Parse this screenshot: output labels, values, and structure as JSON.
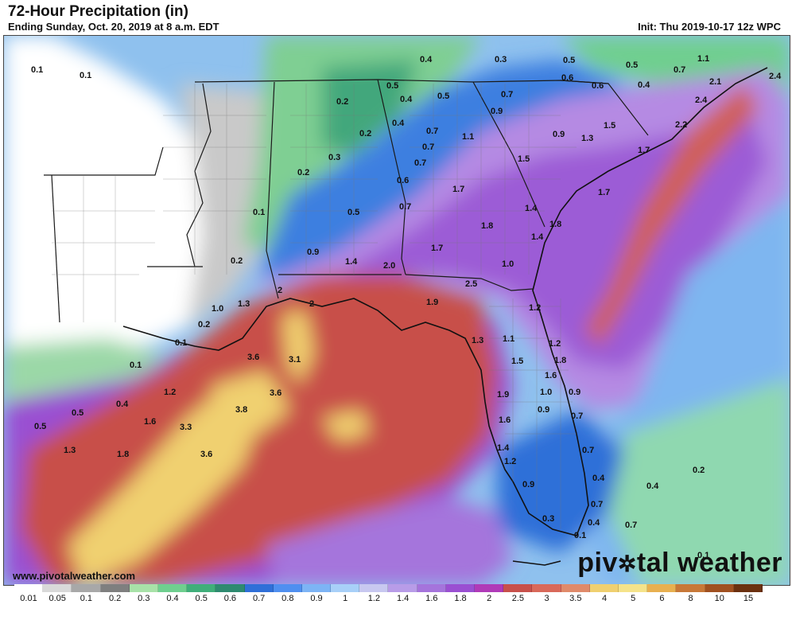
{
  "header": {
    "title": "72-Hour Precipitation (in)",
    "subtitle": "Ending Sunday, Oct. 20, 2019 at 8 a.m. EDT",
    "init": "Init: Thu 2019-10-17 12z WPC"
  },
  "footer": {
    "website": "www.pivotalweather.com",
    "brand_left": "piv",
    "brand_right": "tal weather"
  },
  "legend": {
    "labels": [
      "0.01",
      "0.05",
      "0.1",
      "0.2",
      "0.3",
      "0.4",
      "0.5",
      "0.6",
      "0.7",
      "0.8",
      "0.9",
      "1",
      "1.2",
      "1.4",
      "1.6",
      "1.8",
      "2",
      "2.5",
      "3",
      "3.5",
      "4",
      "5",
      "6",
      "8",
      "10",
      "15"
    ],
    "colors": [
      "#ffffff",
      "#d9d9d9",
      "#a8a8a8",
      "#7f7f7f",
      "#a8e2a8",
      "#6fcf8f",
      "#3fae7a",
      "#2e8a70",
      "#2f6fd8",
      "#4f8ff0",
      "#7db4f5",
      "#a8d0f8",
      "#c8c8f0",
      "#b89ce8",
      "#a574dc",
      "#9a4fd2",
      "#b03ab8",
      "#c8504a",
      "#d9695a",
      "#e08a6a",
      "#f0d070",
      "#f5e38a",
      "#e8b050",
      "#c87838",
      "#a05020",
      "#6b3010"
    ]
  },
  "map": {
    "labels": [
      [
        "0.1",
        34,
        36
      ],
      [
        "0.1",
        95,
        43
      ],
      [
        "0.4",
        523,
        23
      ],
      [
        "0.3",
        617,
        23
      ],
      [
        "0.5",
        703,
        24
      ],
      [
        "0.5",
        782,
        30
      ],
      [
        "0.7",
        842,
        36
      ],
      [
        "1.1",
        872,
        22
      ],
      [
        "0.6",
        701,
        46
      ],
      [
        "0.6",
        739,
        56
      ],
      [
        "0.4",
        797,
        55
      ],
      [
        "0.5",
        481,
        56
      ],
      [
        "0.5",
        545,
        69
      ],
      [
        "0.7",
        625,
        67
      ],
      [
        "0.4",
        498,
        73
      ],
      [
        "0.2",
        418,
        76
      ],
      [
        "0.9",
        612,
        88
      ],
      [
        "2.1",
        887,
        51
      ],
      [
        "2.4",
        962,
        44
      ],
      [
        "2.4",
        869,
        74
      ],
      [
        "2.2",
        844,
        105
      ],
      [
        "1.5",
        754,
        106
      ],
      [
        "0.4",
        488,
        103
      ],
      [
        "0.7",
        531,
        113
      ],
      [
        "1.1",
        576,
        120
      ],
      [
        "0.9",
        690,
        117
      ],
      [
        "1.3",
        726,
        122
      ],
      [
        "0.2",
        447,
        116
      ],
      [
        "0.7",
        526,
        133
      ],
      [
        "1.7",
        797,
        137
      ],
      [
        "0.7",
        516,
        153
      ],
      [
        "1.5",
        646,
        148
      ],
      [
        "0.3",
        408,
        146
      ],
      [
        "0.2",
        369,
        165
      ],
      [
        "0.6",
        494,
        175
      ],
      [
        "1.7",
        564,
        186
      ],
      [
        "1.7",
        747,
        190
      ],
      [
        "0.1",
        313,
        215
      ],
      [
        "0.5",
        432,
        215
      ],
      [
        "0.7",
        497,
        208
      ],
      [
        "1.4",
        655,
        210
      ],
      [
        "1.8",
        600,
        232
      ],
      [
        "1.8",
        686,
        230
      ],
      [
        "1.4",
        663,
        246
      ],
      [
        "0.9",
        381,
        265
      ],
      [
        "1.7",
        537,
        260
      ],
      [
        "0.2",
        285,
        276
      ],
      [
        "1.4",
        429,
        277
      ],
      [
        "2.0",
        477,
        282
      ],
      [
        "1.0",
        626,
        280
      ],
      [
        "2.5",
        580,
        305
      ],
      [
        "2",
        344,
        313
      ],
      [
        "1.0",
        261,
        336
      ],
      [
        "1.3",
        294,
        330
      ],
      [
        "1.9",
        531,
        328
      ],
      [
        "1.2",
        660,
        335
      ],
      [
        "2",
        384,
        330
      ],
      [
        "0.2",
        244,
        356
      ],
      [
        "1.3",
        588,
        376
      ],
      [
        "1.1",
        627,
        374
      ],
      [
        "1.2",
        685,
        380
      ],
      [
        "0.1",
        215,
        379
      ],
      [
        "3.6",
        306,
        397
      ],
      [
        "3.1",
        358,
        400
      ],
      [
        "1.5",
        638,
        402
      ],
      [
        "1.8",
        692,
        401
      ],
      [
        "0.1",
        158,
        407
      ],
      [
        "1.2",
        201,
        441
      ],
      [
        "1.6",
        680,
        420
      ],
      [
        "3.6",
        334,
        442
      ],
      [
        "1.0",
        674,
        441
      ],
      [
        "0.9",
        710,
        441
      ],
      [
        "1.9",
        620,
        444
      ],
      [
        "0.4",
        141,
        456
      ],
      [
        "0.5",
        85,
        467
      ],
      [
        "3.8",
        291,
        463
      ],
      [
        "1.6",
        622,
        476
      ],
      [
        "0.9",
        671,
        463
      ],
      [
        "0.7",
        713,
        471
      ],
      [
        "0.5",
        38,
        484
      ],
      [
        "1.6",
        176,
        478
      ],
      [
        "3.3",
        221,
        485
      ],
      [
        "1.3",
        75,
        514
      ],
      [
        "1.8",
        142,
        519
      ],
      [
        "3.6",
        247,
        519
      ],
      [
        "1.4",
        620,
        511
      ],
      [
        "0.7",
        727,
        514
      ],
      [
        "1.2",
        629,
        528
      ],
      [
        "0.4",
        740,
        549
      ],
      [
        "0.2",
        866,
        539
      ],
      [
        "0.4",
        808,
        559
      ],
      [
        "0.9",
        652,
        557
      ],
      [
        "0.7",
        738,
        582
      ],
      [
        "0.4",
        734,
        605
      ],
      [
        "0.7",
        781,
        608
      ],
      [
        "0.3",
        677,
        600
      ],
      [
        "0.1",
        717,
        621
      ],
      [
        "0.1",
        872,
        646
      ]
    ]
  }
}
